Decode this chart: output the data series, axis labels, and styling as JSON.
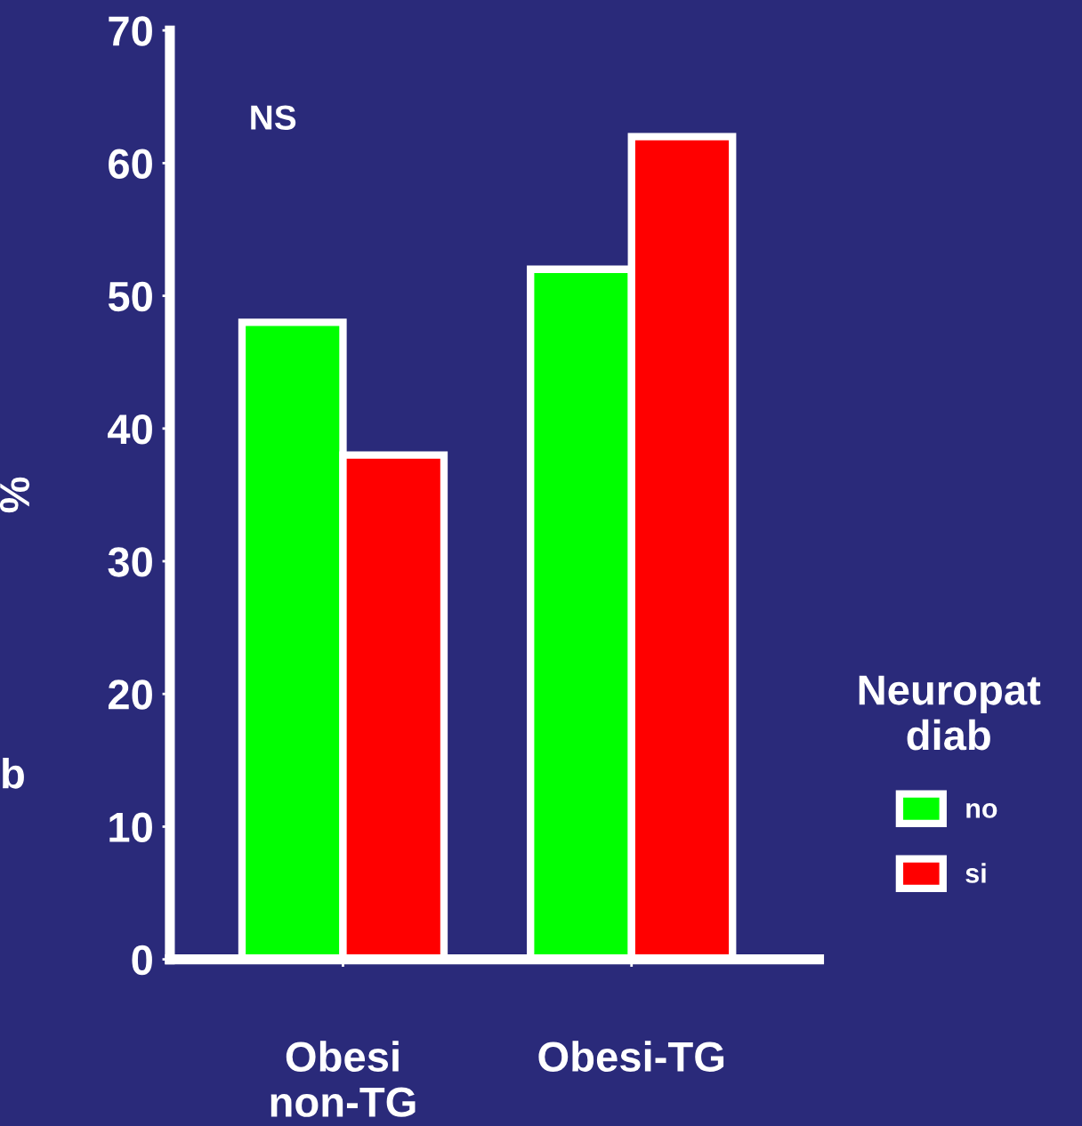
{
  "chart_data": {
    "type": "bar",
    "categories": [
      "Obesi\nnon-TG",
      "Obesi-TG"
    ],
    "series": [
      {
        "name": "no",
        "color": "#00ff00",
        "values": [
          48,
          52
        ]
      },
      {
        "name": "si",
        "color": "#ff0000",
        "values": [
          38,
          62
        ]
      }
    ],
    "ylabel": "%",
    "legend_title": "Neuropat\ndiab",
    "legend": "right",
    "ylim": [
      0,
      70
    ],
    "yticks": [
      0,
      10,
      20,
      30,
      40,
      50,
      60,
      70
    ],
    "annotations": [
      "NS",
      "b"
    ]
  }
}
